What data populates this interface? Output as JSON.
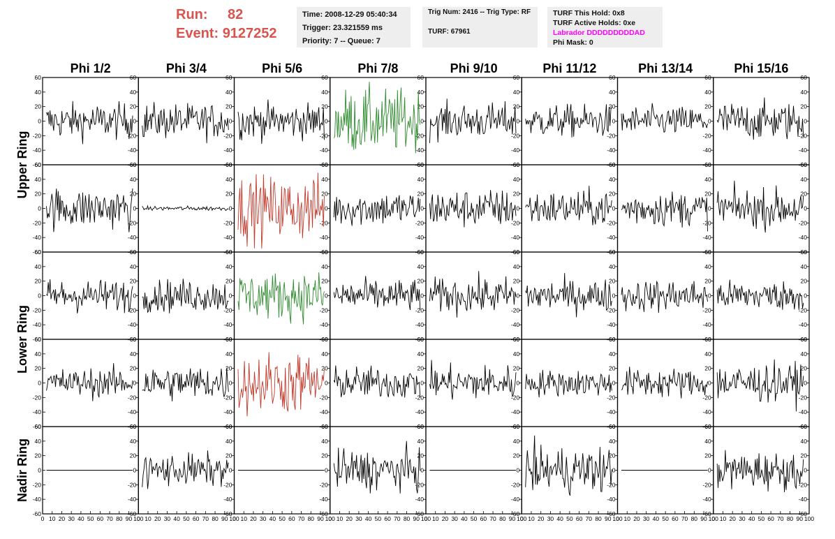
{
  "header": {
    "run_label": "Run:",
    "run_value": "82",
    "event_label": "Event:",
    "event_value": "9127252",
    "time": "Time: 2008-12-29 05:40:34",
    "trigger": "Trigger: 23.321559 ms",
    "priority": "Priority: 7 -- Queue: 7",
    "trig_num": "Trig Num: 2416 -- Trig Type: RF",
    "turf": "TURF: 67961",
    "turf_this_hold": "TURF This Hold: 0x8",
    "turf_active_holds": "TURF Active Holds: 0xe",
    "labrador": "Labrador DDDDDDDDDAD",
    "phi_mask": "Phi Mask: 0"
  },
  "colors": {
    "run_text": "#d9534f",
    "labrador_text": "#ff00ff",
    "default_trace": "#000000",
    "green_trace": "#2e8b2e",
    "red_trace": "#c0392b",
    "header_box": "#eeeeee"
  },
  "chart_data": {
    "type": "line",
    "title": "",
    "columns": [
      "Phi 1/2",
      "Phi 3/4",
      "Phi 5/6",
      "Phi 7/8",
      "Phi 9/10",
      "Phi 11/12",
      "Phi 13/14",
      "Phi 15/16"
    ],
    "ring_labels": [
      {
        "label": "Upper Ring",
        "rows": [
          0,
          1
        ]
      },
      {
        "label": "Lower Ring",
        "rows": [
          2,
          3
        ]
      },
      {
        "label": "Nadir Ring",
        "rows": [
          4
        ]
      }
    ],
    "rows": 5,
    "ylim": [
      -60,
      60
    ],
    "yticks": [
      -60,
      -40,
      -20,
      0,
      20,
      40,
      60
    ],
    "xlim": [
      0,
      100
    ],
    "xticks": [
      0,
      10,
      20,
      30,
      40,
      50,
      60,
      70,
      80,
      90,
      100
    ],
    "x_samples": 96,
    "grid": false,
    "panels": [
      [
        {
          "amp": 12,
          "color": "black"
        },
        {
          "amp": 12,
          "color": "black"
        },
        {
          "amp": 12,
          "color": "black"
        },
        {
          "amp": 22,
          "color": "green"
        },
        {
          "amp": 12,
          "color": "black"
        },
        {
          "amp": 11,
          "color": "black"
        },
        {
          "amp": 10,
          "color": "black"
        },
        {
          "amp": 13,
          "color": "black"
        }
      ],
      [
        {
          "amp": 14,
          "color": "black"
        },
        {
          "amp": 1.5,
          "color": "black"
        },
        {
          "amp": 22,
          "color": "red"
        },
        {
          "amp": 12,
          "color": "black"
        },
        {
          "amp": 13,
          "color": "black"
        },
        {
          "amp": 12,
          "color": "black"
        },
        {
          "amp": 12,
          "color": "black"
        },
        {
          "amp": 13,
          "color": "black"
        }
      ],
      [
        {
          "amp": 11,
          "color": "black"
        },
        {
          "amp": 11,
          "color": "black"
        },
        {
          "amp": 16,
          "color": "green"
        },
        {
          "amp": 11,
          "color": "black"
        },
        {
          "amp": 12,
          "color": "black"
        },
        {
          "amp": 11,
          "color": "black"
        },
        {
          "amp": 11,
          "color": "black"
        },
        {
          "amp": 10,
          "color": "black"
        }
      ],
      [
        {
          "amp": 10,
          "color": "black"
        },
        {
          "amp": 12,
          "color": "black"
        },
        {
          "amp": 21,
          "color": "red"
        },
        {
          "amp": 11,
          "color": "black"
        },
        {
          "amp": 12,
          "color": "black"
        },
        {
          "amp": 9,
          "color": "black"
        },
        {
          "amp": 10,
          "color": "black"
        },
        {
          "amp": 13,
          "color": "black"
        }
      ],
      [
        {
          "amp": 0,
          "color": "black"
        },
        {
          "amp": 11,
          "color": "black"
        },
        {
          "amp": 0,
          "color": "black"
        },
        {
          "amp": 14,
          "color": "black"
        },
        {
          "amp": 0,
          "color": "black"
        },
        {
          "amp": 16,
          "color": "black"
        },
        {
          "amp": 0,
          "color": "black"
        },
        {
          "amp": 13,
          "color": "black"
        }
      ]
    ]
  }
}
